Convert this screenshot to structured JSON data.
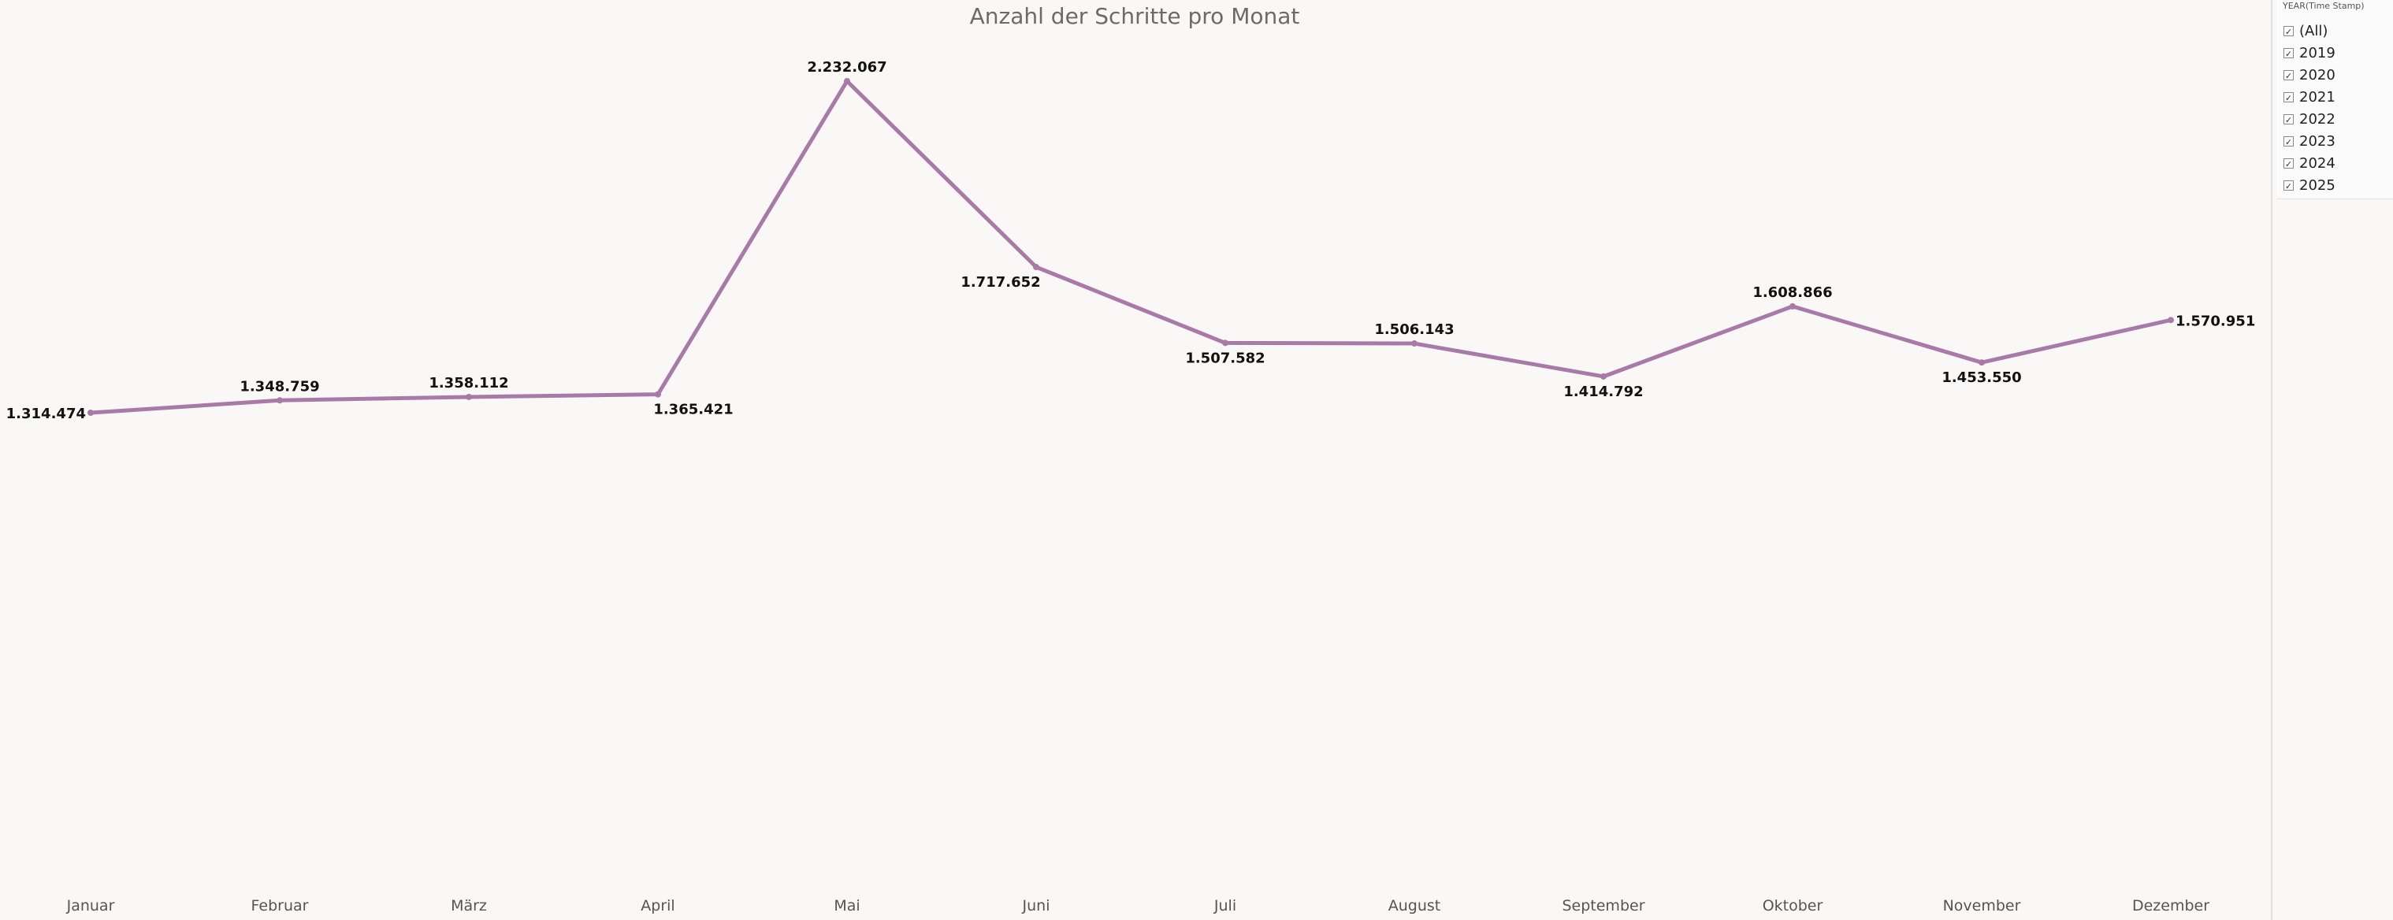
{
  "title": "Anzahl der Schritte pro Monat",
  "filter": {
    "title": "YEAR(Time Stamp)",
    "items": [
      {
        "label": "(All)",
        "checked": true
      },
      {
        "label": "2019",
        "checked": true
      },
      {
        "label": "2020",
        "checked": true
      },
      {
        "label": "2021",
        "checked": true
      },
      {
        "label": "2022",
        "checked": true
      },
      {
        "label": "2023",
        "checked": true
      },
      {
        "label": "2024",
        "checked": true
      },
      {
        "label": "2025",
        "checked": true
      }
    ]
  },
  "colors": {
    "line": "#a97aa8",
    "background": "#f9f8f7"
  },
  "chart_data": {
    "type": "line",
    "title": "Anzahl der Schritte pro Monat",
    "categories": [
      "Januar",
      "Februar",
      "März",
      "April",
      "Mai",
      "Juni",
      "Juli",
      "August",
      "September",
      "Oktober",
      "November",
      "Dezember"
    ],
    "values": [
      1314474,
      1348759,
      1358112,
      1365421,
      2232067,
      1717652,
      1507582,
      1506143,
      1414792,
      1608866,
      1453550,
      1570951
    ],
    "value_labels": [
      "1.314.474",
      "1.348.759",
      "1.358.112",
      "1.365.421",
      "2.232.067",
      "1.717.652",
      "1.507.582",
      "1.506.143",
      "1.414.792",
      "1.608.866",
      "1.453.550",
      "1.570.951"
    ],
    "label_positions": [
      "left",
      "above",
      "above",
      "below",
      "above",
      "below",
      "below",
      "above",
      "below",
      "above",
      "below",
      "right"
    ],
    "xlabel": "",
    "ylabel": "",
    "grid": false
  }
}
